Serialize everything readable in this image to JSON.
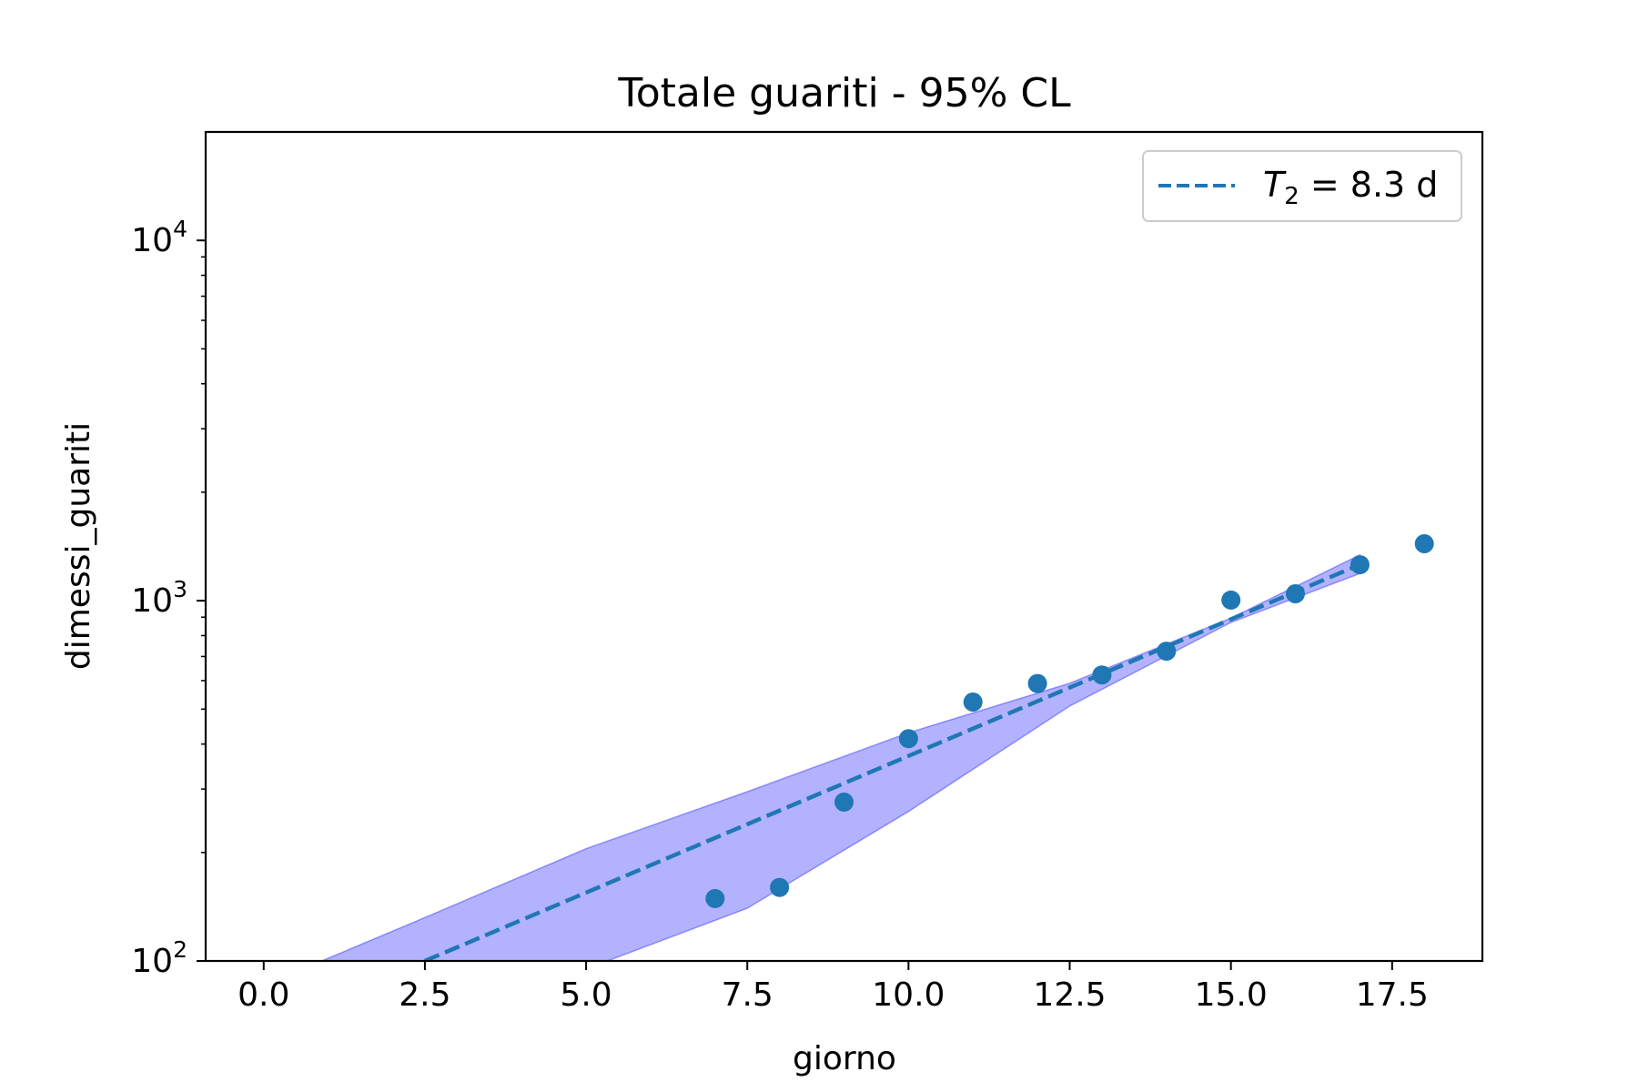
{
  "chart_data": {
    "type": "scatter",
    "title": "Totale guariti - 95% CL",
    "xlabel": "giorno",
    "ylabel": "dimessi_guariti",
    "y_scale": "log",
    "xlim": [
      -0.9,
      18.9
    ],
    "ylim": [
      100,
      20000
    ],
    "x_ticks": [
      0.0,
      2.5,
      5.0,
      7.5,
      10.0,
      12.5,
      15.0,
      17.5
    ],
    "x_tick_labels": [
      "0.0",
      "2.5",
      "5.0",
      "7.5",
      "10.0",
      "12.5",
      "15.0",
      "17.5"
    ],
    "y_ticks": [
      {
        "value": 100,
        "base": "10",
        "exp": "2"
      },
      {
        "value": 1000,
        "base": "10",
        "exp": "3"
      },
      {
        "value": 10000,
        "base": "10",
        "exp": "4"
      }
    ],
    "grid": false,
    "legend": {
      "placement": "top-right",
      "entries": [
        {
          "math_symbol": "T",
          "math_subscript": "2",
          "text": " = 8.3 d"
        }
      ]
    },
    "series": [
      {
        "type": "scatter",
        "x": [
          7,
          8,
          9,
          10,
          11,
          12,
          13,
          14,
          15,
          16,
          17,
          18
        ],
        "y": [
          149,
          160,
          276,
          414,
          523,
          589,
          622,
          724,
          1004,
          1045,
          1258,
          1439
        ],
        "color": "#1f77b4"
      },
      {
        "type": "line",
        "style": "dashed",
        "x": [
          2.5,
          17
        ],
        "y": [
          100,
          1260
        ],
        "color": "#1f77b4"
      }
    ],
    "confidence_band": {
      "x": [
        0.9,
        2.5,
        5.0,
        7.5,
        10.0,
        12.5,
        15.0,
        17.0
      ],
      "lower": [
        56,
        69,
        95,
        140,
        260,
        510,
        870,
        1190
      ],
      "upper": [
        100,
        132,
        205,
        295,
        430,
        590,
        895,
        1340
      ],
      "color": "#0000ff",
      "opacity": 0.3
    },
    "colors": {
      "accent": "#1f77b4",
      "band": "#0000ff"
    }
  }
}
